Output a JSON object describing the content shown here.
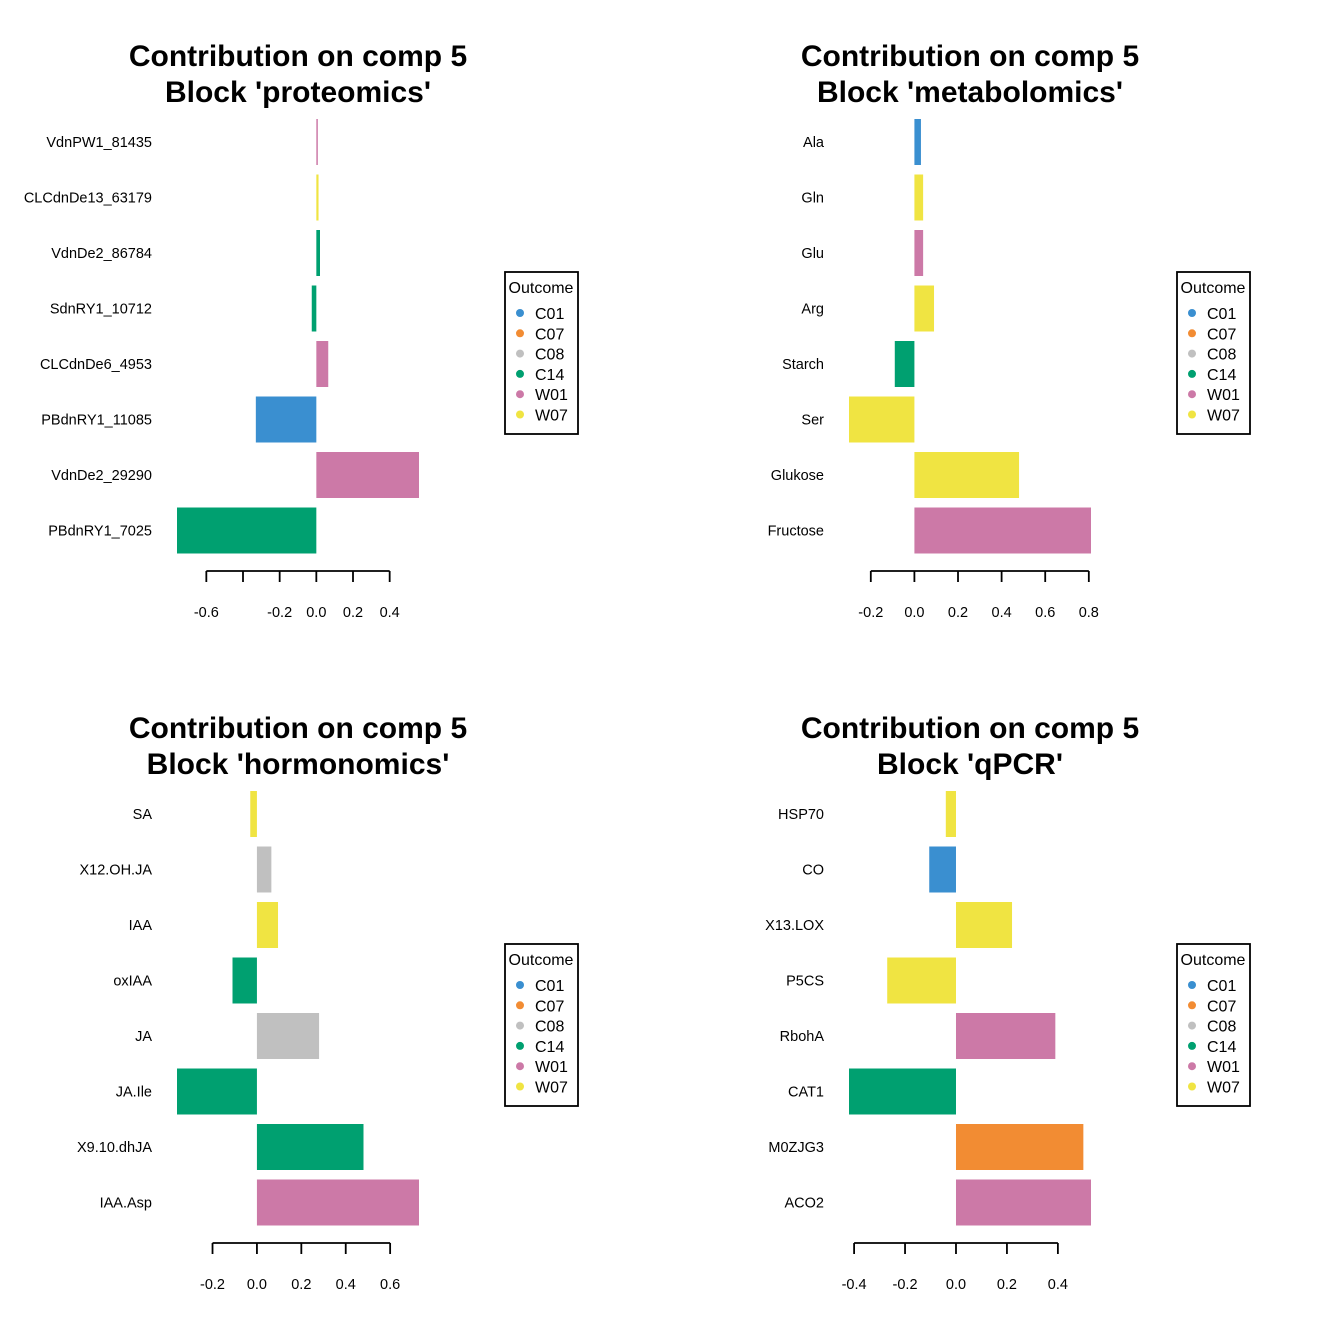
{
  "chart_data": [
    {
      "type": "bar",
      "orientation": "horizontal",
      "title": [
        "Contribution on comp 5",
        "Block 'proteomics'"
      ],
      "categories": [
        "VdnPW1_81435",
        "CLCdnDe13_63179",
        "VdnDe2_86784",
        "SdnRY1_10712",
        "CLCdnDe6_4953",
        "PBdnRY1_11085",
        "VdnDe2_29290",
        "PBdnRY1_7025"
      ],
      "values": [
        0.005,
        0.012,
        0.02,
        -0.025,
        0.065,
        -0.33,
        0.56,
        -0.76
      ],
      "outcomes": [
        "W01",
        "W07",
        "C14",
        "C14",
        "W01",
        "C01",
        "W01",
        "C14"
      ],
      "xticks": [
        -0.6,
        -0.4,
        -0.2,
        0.0,
        0.2,
        0.4
      ],
      "xtick_labels": [
        "-0.6",
        "",
        "-0.2",
        "0.0",
        "0.2",
        "0.4"
      ],
      "xlim": [
        -0.76,
        0.56
      ]
    },
    {
      "type": "bar",
      "orientation": "horizontal",
      "title": [
        "Contribution on comp 5",
        "Block 'metabolomics'"
      ],
      "categories": [
        "Ala",
        "Gln",
        "Glu",
        "Arg",
        "Starch",
        "Ser",
        "Glukose",
        "Fructose"
      ],
      "values": [
        0.03,
        0.04,
        0.04,
        0.09,
        -0.09,
        -0.3,
        0.48,
        0.81
      ],
      "outcomes": [
        "C01",
        "W07",
        "W01",
        "W07",
        "C14",
        "W07",
        "W07",
        "W01"
      ],
      "xticks": [
        -0.2,
        0.0,
        0.2,
        0.4,
        0.6,
        0.8
      ],
      "xtick_labels": [
        "-0.2",
        "0.0",
        "0.2",
        "0.4",
        "0.6",
        "0.8"
      ],
      "xlim": [
        -0.3,
        0.81
      ]
    },
    {
      "type": "bar",
      "orientation": "horizontal",
      "title": [
        "Contribution on comp 5",
        "Block 'hormonomics'"
      ],
      "categories": [
        "SA",
        "X12.OH.JA",
        "IAA",
        "oxIAA",
        "JA",
        "JA.Ile",
        "X9.10.dhJA",
        "IAA.Asp"
      ],
      "values": [
        -0.03,
        0.065,
        0.095,
        -0.11,
        0.28,
        -0.36,
        0.48,
        0.73
      ],
      "outcomes": [
        "W07",
        "C08",
        "W07",
        "C14",
        "C08",
        "C14",
        "C14",
        "W01"
      ],
      "xticks": [
        -0.2,
        0.0,
        0.2,
        0.4,
        0.6
      ],
      "xtick_labels": [
        "-0.2",
        "0.0",
        "0.2",
        "0.4",
        "0.6"
      ],
      "xlim": [
        -0.36,
        0.73
      ]
    },
    {
      "type": "bar",
      "orientation": "horizontal",
      "title": [
        "Contribution on comp 5",
        "Block 'qPCR'"
      ],
      "categories": [
        "HSP70",
        "CO",
        "X13.LOX",
        "P5CS",
        "RbohA",
        "CAT1",
        "M0ZJG3",
        "ACO2"
      ],
      "values": [
        -0.04,
        -0.105,
        0.22,
        -0.27,
        0.39,
        -0.42,
        0.5,
        0.53
      ],
      "outcomes": [
        "W07",
        "C01",
        "W07",
        "W07",
        "W01",
        "C14",
        "C07",
        "W01"
      ],
      "xticks": [
        -0.4,
        -0.2,
        0.0,
        0.2,
        0.4
      ],
      "xtick_labels": [
        "-0.4",
        "-0.2",
        "0.0",
        "0.2",
        "0.4"
      ],
      "xlim": [
        -0.42,
        0.53
      ]
    }
  ],
  "legend": {
    "title": "Outcome",
    "placement": "right",
    "entries": [
      {
        "name": "C01",
        "color": "#3a8fd0"
      },
      {
        "name": "C07",
        "color": "#f28c33"
      },
      {
        "name": "C08",
        "color": "#c0c0c0"
      },
      {
        "name": "C14",
        "color": "#00a070"
      },
      {
        "name": "W01",
        "color": "#cc79a7"
      },
      {
        "name": "W07",
        "color": "#f0e442"
      }
    ]
  }
}
